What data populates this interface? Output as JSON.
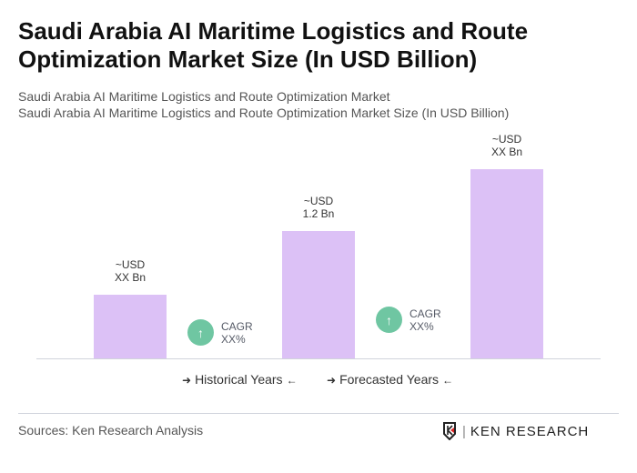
{
  "title": "Saudi Arabia AI Maritime Logistics and Route Optimization Market Size (In USD Billion)",
  "subtitle1": "Saudi Arabia AI Maritime Logistics and Route Optimization Market",
  "subtitle2": "Saudi Arabia AI Maritime Logistics and Route Optimization Market Size (In USD Billion)",
  "chart_data": {
    "type": "bar",
    "categories": [
      "",
      "",
      ""
    ],
    "values": [
      null,
      1.2,
      null
    ],
    "data_labels": [
      [
        "~USD",
        "XX Bn"
      ],
      [
        "~USD",
        "1.2 Bn"
      ],
      [
        "~USD",
        "XX Bn"
      ]
    ],
    "annotations": [
      {
        "label": "CAGR",
        "value": "XX%"
      },
      {
        "label": "CAGR",
        "value": "XX%"
      }
    ],
    "legend": [
      "Historical Years",
      "Forecasted Years"
    ],
    "legend_position": "bottom",
    "grid": false,
    "bar_color": "#dcc1f6",
    "cagr_color": "#6fc6a2"
  },
  "source": "Sources: Ken Research Analysis",
  "logo": "KEN RESEARCH"
}
